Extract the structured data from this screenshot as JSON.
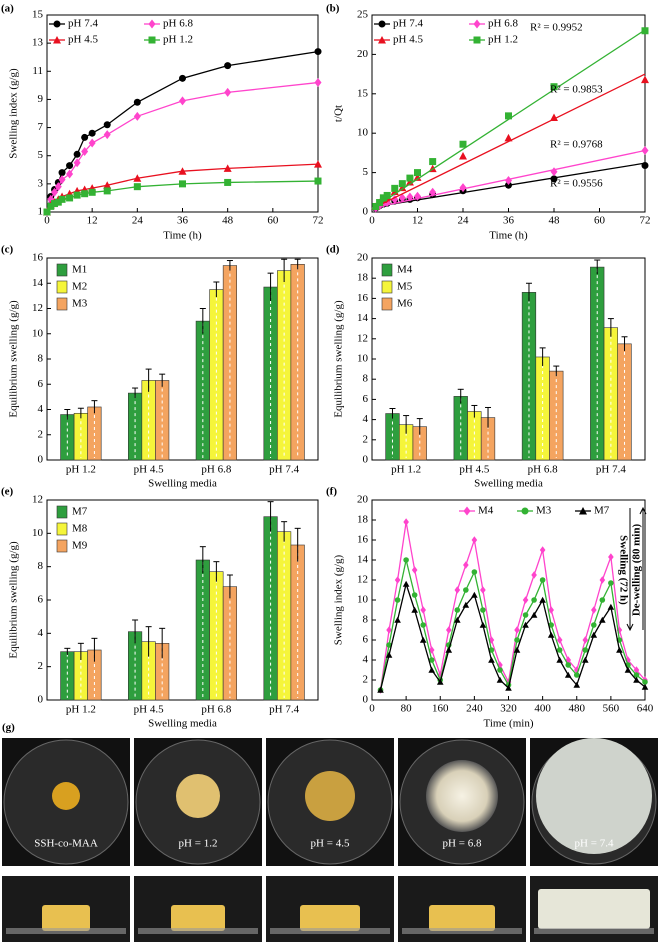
{
  "chart_data": [
    {
      "type": "line",
      "panel": "(a)",
      "ylabel": "Swelling index (g/g)",
      "xlabel": "Time (h)",
      "x": [
        0,
        1,
        2,
        3,
        4,
        6,
        8,
        10,
        12,
        16,
        24,
        36,
        48,
        72
      ],
      "xlim": [
        0,
        72
      ],
      "xticks": [
        0,
        12,
        24,
        36,
        48,
        60,
        72
      ],
      "ylim": [
        1,
        15
      ],
      "yticks": [
        1,
        3,
        5,
        7,
        9,
        11,
        13,
        15
      ],
      "legend": "top-left",
      "series": [
        {
          "name": "pH 7.4",
          "color": "#000000",
          "marker": "circle",
          "values": [
            1,
            2.1,
            2.6,
            3.1,
            3.8,
            4.3,
            5.1,
            6.3,
            6.6,
            7.2,
            8.8,
            10.5,
            11.4,
            12.4
          ]
        },
        {
          "name": "pH 6.8",
          "color": "#ff44cc",
          "marker": "diamond",
          "values": [
            1,
            1.9,
            2.4,
            2.8,
            3.3,
            3.7,
            4.5,
            5.3,
            5.9,
            6.5,
            7.8,
            8.9,
            9.5,
            10.2
          ]
        },
        {
          "name": "pH 4.5",
          "color": "#e8101f",
          "marker": "triangle",
          "values": [
            1,
            1.5,
            1.7,
            1.9,
            2.1,
            2.3,
            2.5,
            2.6,
            2.7,
            2.9,
            3.4,
            3.9,
            4.1,
            4.4
          ]
        },
        {
          "name": "pH 1.2",
          "color": "#33b233",
          "marker": "square",
          "values": [
            1,
            1.4,
            1.6,
            1.7,
            1.9,
            2.0,
            2.2,
            2.3,
            2.4,
            2.5,
            2.8,
            3.0,
            3.1,
            3.2
          ]
        }
      ]
    },
    {
      "type": "scatter",
      "panel": "(b)",
      "ylabel": "t/Qt",
      "xlabel": "Time (h)",
      "x": [
        1,
        2,
        3,
        4,
        6,
        8,
        10,
        12,
        16,
        24,
        36,
        48,
        72
      ],
      "fit_x": [
        0,
        72
      ],
      "xlim": [
        0,
        72
      ],
      "xticks": [
        0,
        12,
        24,
        36,
        48,
        60,
        72
      ],
      "ylim": [
        0,
        25
      ],
      "yticks": [
        0,
        5,
        10,
        15,
        20,
        25
      ],
      "legend": "top-left",
      "annotations": [
        "R² = 0.9952",
        "R² = 0.9853",
        "R² = 0.9768",
        "R² = 0.9556"
      ],
      "series": [
        {
          "name": "pH 7.4",
          "color": "#000000",
          "marker": "circle",
          "values": [
            0.5,
            0.8,
            1.0,
            1.1,
            1.4,
            1.6,
            1.6,
            1.8,
            2.2,
            2.7,
            3.4,
            4.2,
            5.9
          ],
          "fit_values": [
            0.6,
            6.2
          ]
        },
        {
          "name": "pH 6.8",
          "color": "#ff44cc",
          "marker": "diamond",
          "values": [
            0.5,
            0.8,
            1.1,
            1.2,
            1.6,
            1.8,
            1.9,
            2.0,
            2.5,
            3.1,
            4.0,
            5.1,
            7.8
          ],
          "fit_values": [
            0.5,
            7.8
          ]
        },
        {
          "name": "pH 4.5",
          "color": "#e8101f",
          "marker": "triangle",
          "values": [
            0.7,
            1.2,
            1.6,
            1.9,
            2.6,
            3.1,
            3.8,
            4.4,
            5.5,
            7.1,
            9.4,
            12.0,
            16.8
          ],
          "fit_values": [
            0.4,
            17.5
          ]
        },
        {
          "name": "pH 1.2",
          "color": "#33b233",
          "marker": "square",
          "values": [
            0.7,
            1.2,
            1.8,
            2.1,
            3.0,
            3.6,
            4.3,
            5.0,
            6.4,
            8.6,
            12.2,
            15.9,
            23.0
          ],
          "fit_values": [
            0.4,
            23.1
          ]
        }
      ]
    },
    {
      "type": "bar",
      "panel": "(c)",
      "ylabel": "Equilibrium swelling (g/g)",
      "xlabel": "Swelling media",
      "categories": [
        "pH 1.2",
        "pH 4.5",
        "pH 6.8",
        "pH 7.4"
      ],
      "ylim": [
        0,
        16
      ],
      "yticks": [
        0,
        2,
        4,
        6,
        8,
        10,
        12,
        14,
        16
      ],
      "legend": "top-left",
      "series": [
        {
          "name": "M1",
          "color": "#2e9e3e",
          "values": [
            3.6,
            5.3,
            11.0,
            13.7
          ],
          "errors": [
            0.4,
            0.4,
            1.0,
            1.1
          ]
        },
        {
          "name": "M2",
          "color": "#f5f53a",
          "values": [
            3.7,
            6.3,
            13.5,
            15.0
          ],
          "errors": [
            0.4,
            0.9,
            0.6,
            0.9
          ]
        },
        {
          "name": "M3",
          "color": "#f4a460",
          "values": [
            4.2,
            6.3,
            15.4,
            15.5
          ],
          "errors": [
            0.5,
            0.5,
            0.4,
            0.4
          ]
        }
      ]
    },
    {
      "type": "bar",
      "panel": "(d)",
      "ylabel": "Equilibrium swelling (g/g)",
      "xlabel": "Swelling  media",
      "categories": [
        "pH 1.2",
        "pH 4.5",
        "pH 6.8",
        "pH 7.4"
      ],
      "ylim": [
        0,
        20
      ],
      "yticks": [
        0,
        2,
        4,
        6,
        8,
        10,
        12,
        14,
        16,
        18,
        20
      ],
      "legend": "top-left",
      "series": [
        {
          "name": "M4",
          "color": "#2e9e3e",
          "values": [
            4.6,
            6.3,
            16.6,
            19.1
          ],
          "errors": [
            0.5,
            0.7,
            0.9,
            0.7
          ]
        },
        {
          "name": "M5",
          "color": "#f5f53a",
          "values": [
            3.5,
            4.8,
            10.2,
            13.1
          ],
          "errors": [
            0.9,
            0.6,
            0.9,
            0.9
          ]
        },
        {
          "name": "M6",
          "color": "#f4a460",
          "values": [
            3.3,
            4.2,
            8.8,
            11.5
          ],
          "errors": [
            0.8,
            1.0,
            0.5,
            0.7
          ]
        }
      ]
    },
    {
      "type": "bar",
      "panel": "(e)",
      "ylabel": "Equilibrium swelling (g/g)",
      "xlabel": "Swelling media",
      "categories": [
        "pH 1.2",
        "pH 4.5",
        "pH 6.8",
        "pH 7.4"
      ],
      "ylim": [
        0,
        12
      ],
      "yticks": [
        0,
        2,
        4,
        6,
        8,
        10,
        12
      ],
      "legend": "top-left",
      "series": [
        {
          "name": "M7",
          "color": "#2e9e3e",
          "values": [
            2.9,
            4.1,
            8.4,
            11.0
          ],
          "errors": [
            0.2,
            0.7,
            0.8,
            0.9
          ]
        },
        {
          "name": "M8",
          "color": "#f5f53a",
          "values": [
            2.9,
            3.5,
            7.7,
            10.1
          ],
          "errors": [
            0.5,
            0.9,
            0.6,
            0.6
          ]
        },
        {
          "name": "M9",
          "color": "#f4a460",
          "values": [
            3.0,
            3.4,
            6.8,
            9.3
          ],
          "errors": [
            0.7,
            0.9,
            0.7,
            1.0
          ]
        }
      ]
    },
    {
      "type": "line",
      "panel": "(f)",
      "ylabel": "Swelling index (g/g)",
      "xlabel": "Time (min)",
      "x": [
        20,
        40,
        60,
        80,
        100,
        120,
        140,
        160,
        180,
        200,
        220,
        240,
        260,
        280,
        300,
        320,
        340,
        360,
        380,
        400,
        420,
        440,
        460,
        480,
        500,
        520,
        540,
        560,
        580,
        600,
        620,
        640
      ],
      "xlim": [
        0,
        640
      ],
      "xticks": [
        0,
        80,
        160,
        240,
        320,
        400,
        480,
        560,
        640
      ],
      "ylim": [
        0,
        20
      ],
      "yticks": [
        0,
        2,
        4,
        6,
        8,
        10,
        12,
        14,
        16,
        18,
        20
      ],
      "legend": "top",
      "annotations": [
        "Swelling (72 h)",
        "De-welling (80 min)"
      ],
      "series": [
        {
          "name": "M4",
          "color": "#ff44cc",
          "marker": "diamond",
          "values": [
            1,
            7,
            12,
            17.8,
            13,
            9,
            5,
            2.5,
            7,
            11,
            13.5,
            16,
            11,
            6,
            3.5,
            1.8,
            7,
            10,
            12.5,
            15,
            9,
            6,
            4,
            3,
            6,
            9,
            12,
            14.3,
            7,
            4,
            3,
            2
          ]
        },
        {
          "name": "M3",
          "color": "#33b233",
          "marker": "circle",
          "values": [
            1,
            5.5,
            10,
            14,
            10.5,
            7.5,
            4,
            2,
            5.5,
            9,
            11,
            12.8,
            9,
            5,
            3,
            1.5,
            6,
            8.5,
            10,
            12,
            7.5,
            5,
            3.5,
            2.5,
            5,
            7.5,
            10,
            11.7,
            6,
            3.5,
            2.5,
            1.8
          ]
        },
        {
          "name": "M7",
          "color": "#000000",
          "marker": "triangle",
          "values": [
            1,
            4.5,
            8,
            11.6,
            9,
            6,
            3,
            1.8,
            5,
            8,
            9.5,
            10.5,
            7.5,
            4,
            2,
            1.2,
            5,
            7.5,
            8.5,
            10,
            6.5,
            4,
            2.5,
            1.5,
            4,
            6.5,
            8,
            9.3,
            5,
            3,
            2,
            1.3
          ]
        }
      ]
    }
  ],
  "photos": {
    "panel": "(g)",
    "labels": [
      "SSH-co-MAA",
      "pH = 1.2",
      "pH = 4.5",
      "pH = 6.8",
      "pH = 7.4"
    ]
  }
}
